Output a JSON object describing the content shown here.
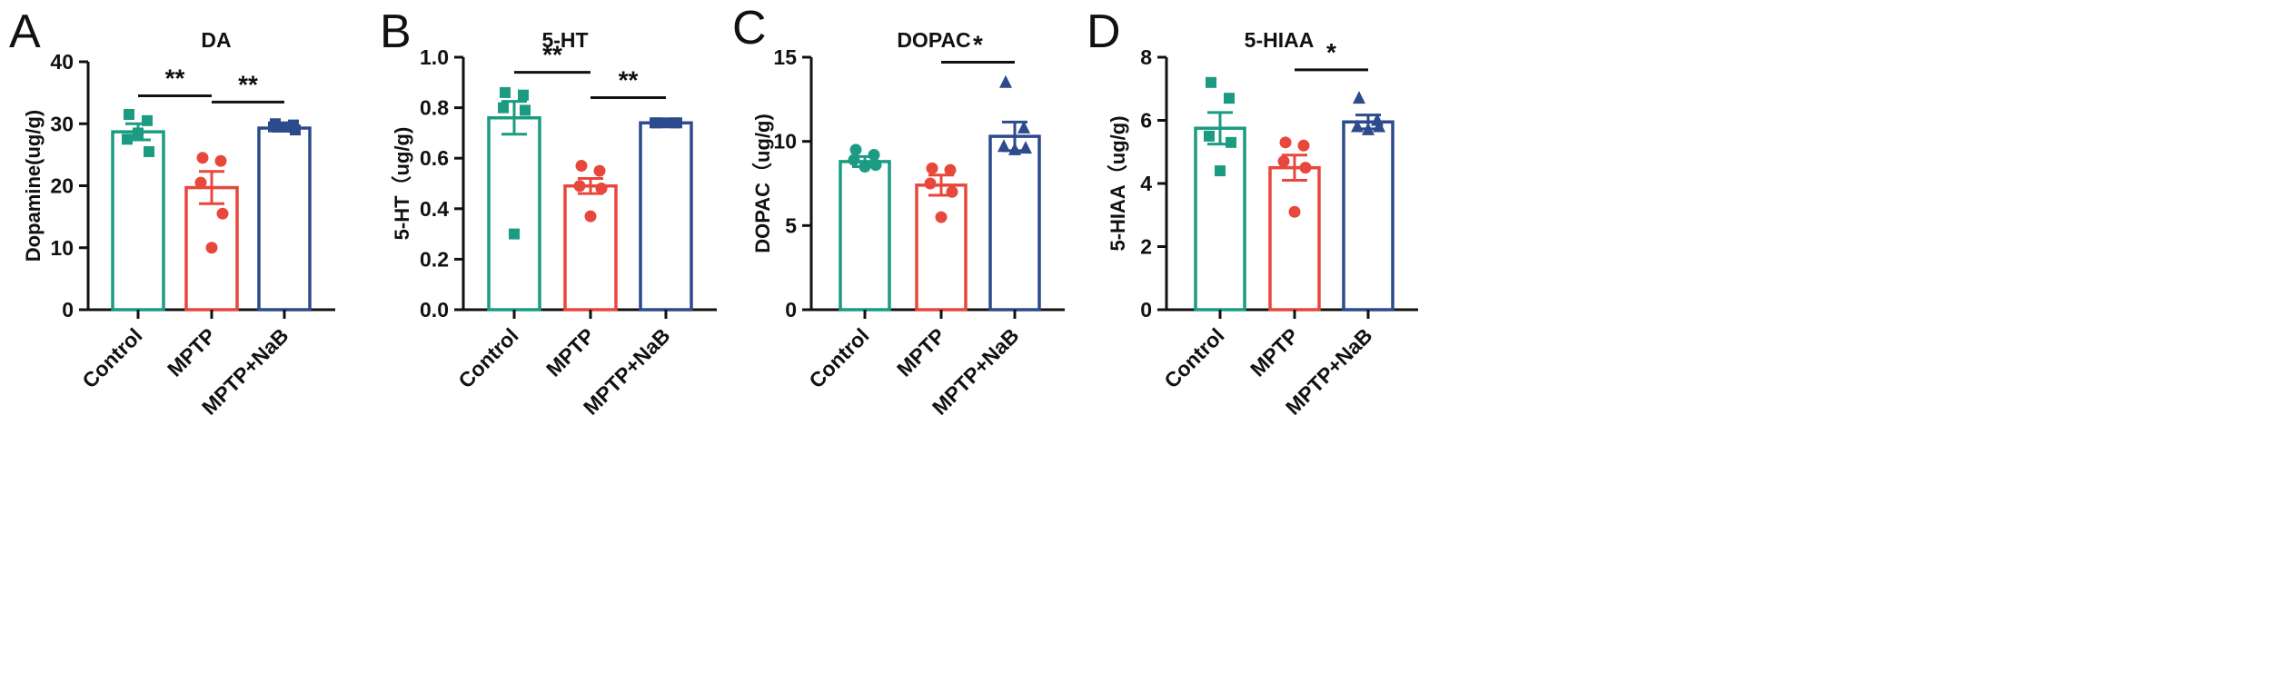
{
  "colors": {
    "control": "#1a9b82",
    "mptp": "#e8473c",
    "nab": "#2c4a8c",
    "axis": "#111111"
  },
  "chart_data": [
    {
      "type": "bar",
      "panel_letter": "A",
      "title": "DA",
      "ylabel": "Dopamine(ug/g)",
      "xlabel": "",
      "categories": [
        "Control",
        "MPTP",
        "MPTP+NaB"
      ],
      "values": [
        28.7,
        19.7,
        29.3
      ],
      "errors": [
        1.3,
        2.6,
        0.5
      ],
      "points": [
        [
          31.5,
          30.5,
          27.5,
          25.5,
          28.5
        ],
        [
          24.5,
          24.0,
          20.5,
          15.5,
          10.0
        ],
        [
          30.0,
          29.8,
          29.5,
          29.0,
          29.5
        ]
      ],
      "markers": [
        "square",
        "circle",
        "square"
      ],
      "ylim": [
        0,
        40
      ],
      "yticks": [
        "0",
        "10",
        "20",
        "30",
        "40"
      ],
      "brackets": [
        {
          "from": 0,
          "to": 1,
          "label": "**",
          "y": 34.5
        },
        {
          "from": 1,
          "to": 2,
          "label": "**",
          "y": 33.5
        }
      ]
    },
    {
      "type": "bar",
      "panel_letter": "B",
      "title": "5-HT",
      "ylabel": "5-HT（ug/g)",
      "xlabel": "",
      "categories": [
        "Control",
        "MPTP",
        "MPTP+NaB"
      ],
      "values": [
        0.76,
        0.49,
        0.74
      ],
      "errors": [
        0.065,
        0.03,
        0.005
      ],
      "points": [
        [
          0.86,
          0.85,
          0.8,
          0.79,
          0.3
        ],
        [
          0.57,
          0.55,
          0.49,
          0.48,
          0.37
        ],
        [
          0.74,
          0.74,
          0.74,
          0.74,
          0.74
        ]
      ],
      "markers": [
        "square",
        "circle",
        "square"
      ],
      "ylim": [
        0,
        1.0
      ],
      "yticks": [
        "0.0",
        "0.2",
        "0.4",
        "0.6",
        "0.8",
        "1.0"
      ],
      "brackets": [
        {
          "from": 0,
          "to": 1,
          "label": "**",
          "y": 0.94
        },
        {
          "from": 1,
          "to": 2,
          "label": "**",
          "y": 0.84
        }
      ]
    },
    {
      "type": "bar",
      "panel_letter": "C",
      "title": "DOPAC",
      "ylabel": "DOPAC（ug/g)",
      "xlabel": "",
      "categories": [
        "Control",
        "MPTP",
        "MPTP+NaB"
      ],
      "values": [
        8.8,
        7.4,
        10.3
      ],
      "errors": [
        0.3,
        0.6,
        0.85
      ],
      "points": [
        [
          9.5,
          9.2,
          8.9,
          8.6,
          8.5
        ],
        [
          8.4,
          8.3,
          7.5,
          7.0,
          5.5
        ],
        [
          13.5,
          10.8,
          9.7,
          9.6,
          9.5
        ]
      ],
      "markers": [
        "circle",
        "circle",
        "triangle"
      ],
      "ylim": [
        0,
        15
      ],
      "yticks": [
        "0",
        "5",
        "10",
        "15"
      ],
      "brackets": [
        {
          "from": 1,
          "to": 2,
          "label": "*",
          "y": 14.7
        }
      ]
    },
    {
      "type": "bar",
      "panel_letter": "D",
      "title": "5-HIAA",
      "ylabel": "5-HIAA（ug/g)",
      "xlabel": "",
      "categories": [
        "Control",
        "MPTP",
        "MPTP+NaB"
      ],
      "values": [
        5.75,
        4.5,
        5.95
      ],
      "errors": [
        0.5,
        0.4,
        0.22
      ],
      "points": [
        [
          7.2,
          6.7,
          5.5,
          5.3,
          4.4
        ],
        [
          5.3,
          5.2,
          4.7,
          4.5,
          3.1
        ],
        [
          6.7,
          6.0,
          5.8,
          5.8,
          5.7
        ]
      ],
      "markers": [
        "square",
        "circle",
        "triangle"
      ],
      "ylim": [
        0,
        8
      ],
      "yticks": [
        "0",
        "2",
        "4",
        "6",
        "8"
      ],
      "brackets": [
        {
          "from": 1,
          "to": 2,
          "label": "*",
          "y": 7.6
        }
      ]
    }
  ]
}
